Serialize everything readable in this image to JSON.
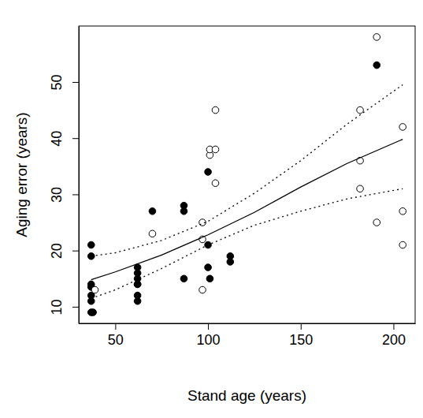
{
  "chart_data": {
    "type": "scatter",
    "x_label": "Stand age (years)",
    "y_label": "Aging error (years)",
    "xlim": [
      30.3,
      211.7
    ],
    "ylim": [
      7.04,
      59.96
    ],
    "xticks": [
      50,
      100,
      150,
      200
    ],
    "yticks": [
      10,
      20,
      30,
      40,
      50
    ],
    "series": [
      {
        "type": "scatter",
        "marker": "filled_circle",
        "color": "#000000",
        "x": [
          37,
          37,
          37,
          37,
          37,
          37,
          37,
          38,
          62,
          62,
          62,
          62,
          62,
          62,
          62,
          70,
          87,
          87,
          87,
          100,
          100,
          100,
          101,
          112,
          112,
          191
        ],
        "values": [
          21,
          19,
          14,
          13.5,
          12,
          11,
          9,
          9,
          17,
          16,
          15,
          14,
          14,
          12,
          11,
          27,
          28,
          27,
          15,
          34,
          21,
          17,
          15,
          19,
          18,
          53
        ]
      },
      {
        "type": "scatter",
        "marker": "open_circle",
        "color": "#000000",
        "x": [
          39,
          70,
          97,
          97,
          97,
          101,
          101,
          104,
          104,
          104,
          182,
          182,
          182,
          191,
          191,
          205,
          205,
          205
        ],
        "values": [
          13,
          23,
          13,
          22,
          25,
          37,
          38,
          45,
          38,
          32,
          45,
          36,
          31,
          58,
          25,
          42,
          27,
          21
        ]
      },
      {
        "type": "line",
        "line_style": "solid",
        "color": "#000000",
        "x": [
          37,
          50,
          75,
          100,
          125,
          150,
          175,
          205
        ],
        "values": [
          14.8,
          16.2,
          19.2,
          22.8,
          26.8,
          31.3,
          35.5,
          39.8
        ]
      },
      {
        "type": "line",
        "line_style": "dotted",
        "color": "#000000",
        "x": [
          37,
          50,
          75,
          100,
          125,
          150,
          175,
          205
        ],
        "values": [
          19,
          19.6,
          21.8,
          25.2,
          30.2,
          36,
          42.5,
          49.5
        ]
      },
      {
        "type": "line",
        "line_style": "dotted",
        "color": "#000000",
        "x": [
          37,
          50,
          75,
          100,
          125,
          150,
          175,
          205
        ],
        "values": [
          11.5,
          13,
          16.8,
          21,
          24.5,
          27,
          29.2,
          31
        ]
      }
    ]
  }
}
